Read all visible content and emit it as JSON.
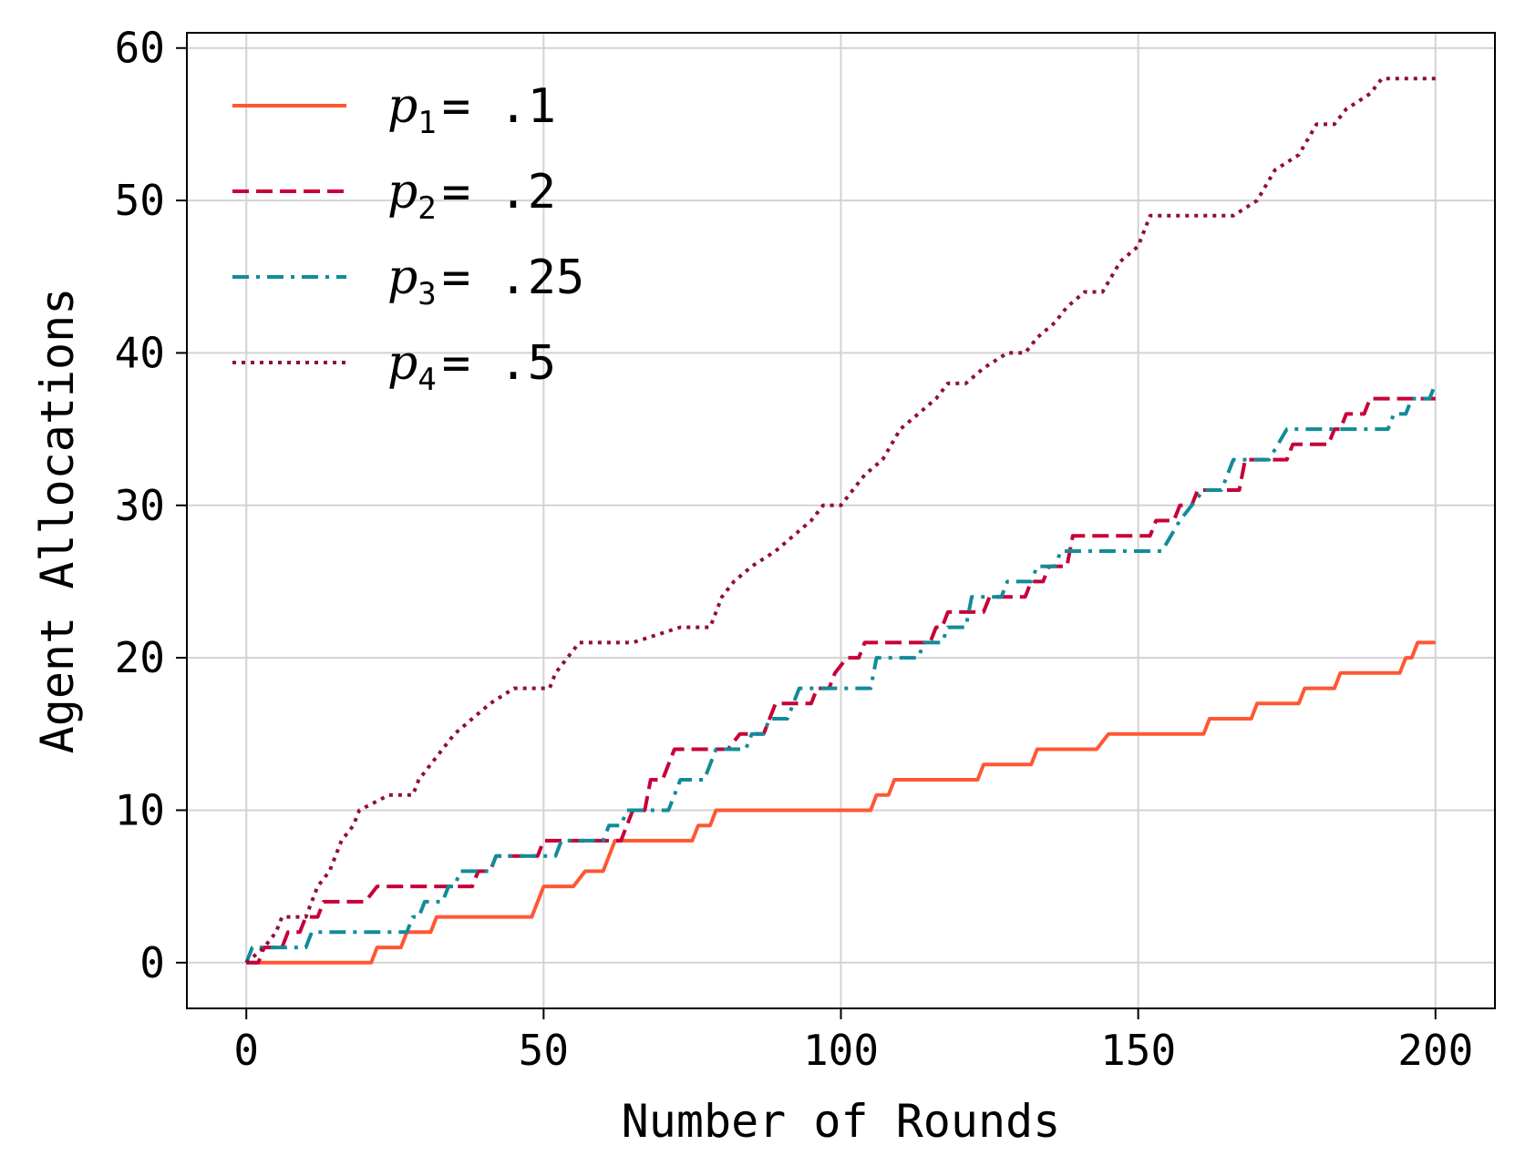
{
  "chart_data": {
    "type": "line",
    "step": true,
    "xlabel": "Number of Rounds",
    "ylabel": "Agent Allocations",
    "xlim": [
      -10,
      210
    ],
    "ylim": [
      -3,
      61
    ],
    "xticks": [
      0,
      50,
      100,
      150,
      200
    ],
    "yticks": [
      0,
      10,
      20,
      30,
      40,
      50,
      60
    ],
    "grid": true,
    "legend_position": "top-left",
    "series": [
      {
        "name": "p1 = .1",
        "symbol": "p",
        "subscript": "1",
        "value_text": "= .1",
        "color": "#FF5733",
        "linestyle": "solid",
        "points": [
          [
            0,
            0
          ],
          [
            21,
            0
          ],
          [
            22,
            1
          ],
          [
            26,
            1
          ],
          [
            27,
            2
          ],
          [
            31,
            2
          ],
          [
            32,
            3
          ],
          [
            48,
            3
          ],
          [
            50,
            5
          ],
          [
            55,
            5
          ],
          [
            57,
            6
          ],
          [
            60,
            6
          ],
          [
            61,
            7
          ],
          [
            62,
            8
          ],
          [
            75,
            8
          ],
          [
            76,
            9
          ],
          [
            78,
            9
          ],
          [
            79,
            10
          ],
          [
            105,
            10
          ],
          [
            106,
            11
          ],
          [
            108,
            11
          ],
          [
            109,
            12
          ],
          [
            123,
            12
          ],
          [
            124,
            13
          ],
          [
            132,
            13
          ],
          [
            133,
            14
          ],
          [
            143,
            14
          ],
          [
            145,
            15
          ],
          [
            161,
            15
          ],
          [
            162,
            16
          ],
          [
            169,
            16
          ],
          [
            170,
            17
          ],
          [
            177,
            17
          ],
          [
            178,
            18
          ],
          [
            183,
            18
          ],
          [
            184,
            19
          ],
          [
            194,
            19
          ],
          [
            195,
            20
          ],
          [
            196,
            20
          ],
          [
            197,
            21
          ],
          [
            200,
            21
          ]
        ]
      },
      {
        "name": "p2 = .2",
        "symbol": "p",
        "subscript": "2",
        "value_text": "= .2",
        "color": "#C70039",
        "linestyle": "dashed",
        "points": [
          [
            0,
            0
          ],
          [
            2,
            0
          ],
          [
            3,
            1
          ],
          [
            6,
            1
          ],
          [
            7,
            2
          ],
          [
            9,
            2
          ],
          [
            10,
            3
          ],
          [
            12,
            3
          ],
          [
            13,
            4
          ],
          [
            20,
            4
          ],
          [
            22,
            5
          ],
          [
            38,
            5
          ],
          [
            39,
            6
          ],
          [
            41,
            6
          ],
          [
            42,
            7
          ],
          [
            49,
            7
          ],
          [
            50,
            8
          ],
          [
            63,
            8
          ],
          [
            64,
            9
          ],
          [
            65,
            10
          ],
          [
            67,
            10
          ],
          [
            68,
            12
          ],
          [
            70,
            12
          ],
          [
            72,
            14
          ],
          [
            81,
            14
          ],
          [
            83,
            15
          ],
          [
            87,
            15
          ],
          [
            89,
            17
          ],
          [
            95,
            17
          ],
          [
            96,
            18
          ],
          [
            98,
            18
          ],
          [
            99,
            19
          ],
          [
            101,
            20
          ],
          [
            103,
            20
          ],
          [
            104,
            21
          ],
          [
            115,
            21
          ],
          [
            116,
            22
          ],
          [
            117,
            22
          ],
          [
            118,
            23
          ],
          [
            124,
            23
          ],
          [
            125,
            24
          ],
          [
            131,
            24
          ],
          [
            132,
            25
          ],
          [
            134,
            25
          ],
          [
            135,
            26
          ],
          [
            138,
            26
          ],
          [
            139,
            28
          ],
          [
            152,
            28
          ],
          [
            153,
            29
          ],
          [
            156,
            29
          ],
          [
            157,
            30
          ],
          [
            159,
            30
          ],
          [
            160,
            31
          ],
          [
            167,
            31
          ],
          [
            168,
            33
          ],
          [
            175,
            33
          ],
          [
            176,
            34
          ],
          [
            182,
            34
          ],
          [
            183,
            35
          ],
          [
            184,
            35
          ],
          [
            185,
            36
          ],
          [
            188,
            36
          ],
          [
            189,
            37
          ],
          [
            200,
            37
          ]
        ]
      },
      {
        "name": "p3 = .25",
        "symbol": "p",
        "subscript": "3",
        "value_text": "= .25",
        "color": "#118C99",
        "linestyle": "dashdot",
        "points": [
          [
            0,
            0
          ],
          [
            1,
            1
          ],
          [
            10,
            1
          ],
          [
            11,
            2
          ],
          [
            27,
            2
          ],
          [
            28,
            3
          ],
          [
            29,
            3
          ],
          [
            30,
            4
          ],
          [
            33,
            4
          ],
          [
            34,
            5
          ],
          [
            35,
            5
          ],
          [
            36,
            6
          ],
          [
            41,
            6
          ],
          [
            42,
            7
          ],
          [
            52,
            7
          ],
          [
            53,
            8
          ],
          [
            60,
            8
          ],
          [
            61,
            9
          ],
          [
            63,
            9
          ],
          [
            64,
            10
          ],
          [
            71,
            10
          ],
          [
            73,
            12
          ],
          [
            77,
            12
          ],
          [
            79,
            14
          ],
          [
            84,
            14
          ],
          [
            85,
            15
          ],
          [
            87,
            15
          ],
          [
            88,
            16
          ],
          [
            91,
            16
          ],
          [
            93,
            18
          ],
          [
            101,
            18
          ],
          [
            105,
            18
          ],
          [
            106,
            20
          ],
          [
            113,
            20
          ],
          [
            114,
            21
          ],
          [
            117,
            21
          ],
          [
            118,
            22
          ],
          [
            121,
            22
          ],
          [
            122,
            24
          ],
          [
            127,
            24
          ],
          [
            128,
            25
          ],
          [
            132,
            25
          ],
          [
            133,
            26
          ],
          [
            136,
            26
          ],
          [
            137,
            27
          ],
          [
            154,
            27
          ],
          [
            157,
            29
          ],
          [
            159,
            30
          ],
          [
            161,
            31
          ],
          [
            164,
            31
          ],
          [
            166,
            33
          ],
          [
            172,
            33
          ],
          [
            175,
            35
          ],
          [
            188,
            35
          ],
          [
            192,
            35
          ],
          [
            193,
            36
          ],
          [
            195,
            36
          ],
          [
            196,
            37
          ],
          [
            199,
            37
          ],
          [
            200,
            38
          ]
        ]
      },
      {
        "name": "p4 = .5",
        "symbol": "p",
        "subscript": "4",
        "value_text": "= .5",
        "color": "#900C3F",
        "linestyle": "dotted",
        "points": [
          [
            0,
            0
          ],
          [
            3,
            1
          ],
          [
            5,
            2
          ],
          [
            6,
            3
          ],
          [
            10,
            3
          ],
          [
            11,
            4
          ],
          [
            12,
            5
          ],
          [
            14,
            6
          ],
          [
            16,
            8
          ],
          [
            18,
            9
          ],
          [
            19,
            10
          ],
          [
            24,
            11
          ],
          [
            28,
            11
          ],
          [
            29,
            12
          ],
          [
            31,
            13
          ],
          [
            33,
            14
          ],
          [
            35,
            15
          ],
          [
            38,
            16
          ],
          [
            41,
            17
          ],
          [
            45,
            18
          ],
          [
            51,
            18
          ],
          [
            52,
            19
          ],
          [
            54,
            20
          ],
          [
            56,
            21
          ],
          [
            65,
            21
          ],
          [
            73,
            22
          ],
          [
            78,
            22
          ],
          [
            80,
            24
          ],
          [
            82,
            25
          ],
          [
            85,
            26
          ],
          [
            89,
            27
          ],
          [
            92,
            28
          ],
          [
            95,
            29
          ],
          [
            97,
            30
          ],
          [
            100,
            30
          ],
          [
            102,
            31
          ],
          [
            104,
            32
          ],
          [
            107,
            33
          ],
          [
            110,
            35
          ],
          [
            113,
            36
          ],
          [
            116,
            37
          ],
          [
            118,
            38
          ],
          [
            121,
            38
          ],
          [
            124,
            39
          ],
          [
            128,
            40
          ],
          [
            131,
            40
          ],
          [
            133,
            41
          ],
          [
            136,
            42
          ],
          [
            138,
            43
          ],
          [
            141,
            44
          ],
          [
            144,
            44
          ],
          [
            147,
            46
          ],
          [
            150,
            47
          ],
          [
            152,
            49
          ],
          [
            166,
            49
          ],
          [
            170,
            50
          ],
          [
            173,
            52
          ],
          [
            177,
            53
          ],
          [
            180,
            55
          ],
          [
            183,
            55
          ],
          [
            185,
            56
          ],
          [
            189,
            57
          ],
          [
            191,
            58
          ],
          [
            200,
            58
          ]
        ]
      }
    ]
  }
}
